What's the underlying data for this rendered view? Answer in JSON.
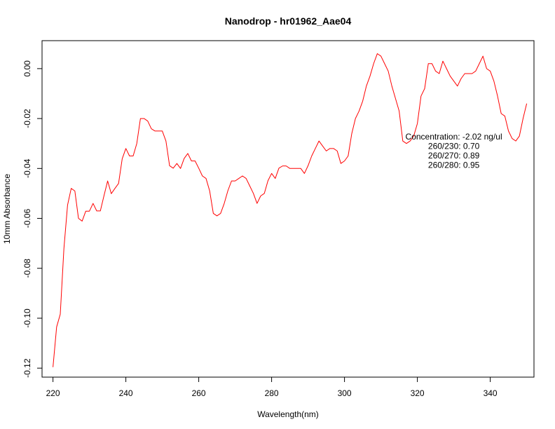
{
  "chart_data": {
    "type": "line",
    "title": "Nanodrop - hr01962_Aae04",
    "xlabel": "Wavelength(nm)",
    "ylabel": "10mm Absorbance",
    "xlim": [
      217,
      352
    ],
    "ylim": [
      -0.1236,
      0.0112
    ],
    "x_ticks": [
      220,
      240,
      260,
      280,
      300,
      320,
      340
    ],
    "y_ticks": [
      0.0,
      -0.02,
      -0.04,
      -0.06,
      -0.08,
      -0.1,
      -0.12
    ],
    "y_tick_labels": [
      "0.00",
      "-0.02",
      "-0.04",
      "-0.06",
      "-0.08",
      "-0.10",
      "-0.12"
    ],
    "grid": false,
    "legend": "none",
    "series": [
      {
        "color": "#ff0000",
        "x": [
          220,
          221,
          222,
          223,
          224,
          225,
          226,
          227,
          228,
          229,
          230,
          231,
          232,
          233,
          234,
          235,
          236,
          237,
          238,
          239,
          240,
          241,
          242,
          243,
          244,
          245,
          246,
          247,
          248,
          249,
          250,
          251,
          252,
          253,
          254,
          255,
          256,
          257,
          258,
          259,
          260,
          261,
          262,
          263,
          264,
          265,
          266,
          267,
          268,
          269,
          270,
          271,
          272,
          273,
          274,
          275,
          276,
          277,
          278,
          279,
          280,
          281,
          282,
          283,
          284,
          285,
          286,
          287,
          288,
          289,
          290,
          291,
          292,
          293,
          294,
          295,
          296,
          297,
          298,
          299,
          300,
          301,
          302,
          303,
          304,
          305,
          306,
          307,
          308,
          309,
          310,
          311,
          312,
          313,
          314,
          315,
          316,
          317,
          318,
          319,
          320,
          321,
          322,
          323,
          324,
          325,
          326,
          327,
          328,
          329,
          330,
          331,
          332,
          333,
          334,
          335,
          336,
          337,
          338,
          339,
          340,
          341,
          342,
          343,
          344,
          345,
          346,
          347,
          348,
          349,
          350
        ],
        "y": [
          -0.1196,
          -0.1035,
          -0.0984,
          -0.0721,
          -0.0547,
          -0.048,
          -0.049,
          -0.06,
          -0.0611,
          -0.0571,
          -0.0571,
          -0.054,
          -0.057,
          -0.057,
          -0.0509,
          -0.045,
          -0.0501,
          -0.048,
          -0.046,
          -0.0361,
          -0.032,
          -0.035,
          -0.035,
          -0.03,
          -0.02,
          -0.02,
          -0.021,
          -0.0241,
          -0.025,
          -0.025,
          -0.025,
          -0.029,
          -0.0389,
          -0.0399,
          -0.038,
          -0.04,
          -0.036,
          -0.034,
          -0.037,
          -0.037,
          -0.0399,
          -0.043,
          -0.044,
          -0.049,
          -0.058,
          -0.059,
          -0.058,
          -0.054,
          -0.0489,
          -0.045,
          -0.045,
          -0.044,
          -0.043,
          -0.044,
          -0.047,
          -0.05,
          -0.054,
          -0.051,
          -0.05,
          -0.0449,
          -0.042,
          -0.044,
          -0.0399,
          -0.039,
          -0.039,
          -0.04,
          -0.04,
          -0.04,
          -0.04,
          -0.042,
          -0.0389,
          -0.035,
          -0.032,
          -0.029,
          -0.031,
          -0.033,
          -0.032,
          -0.032,
          -0.033,
          -0.038,
          -0.037,
          -0.035,
          -0.026,
          -0.02,
          -0.017,
          -0.013,
          -0.007,
          -0.003,
          0.002,
          0.006,
          0.005,
          0.002,
          -0.001,
          -0.007,
          -0.012,
          -0.017,
          -0.029,
          -0.03,
          -0.029,
          -0.027,
          -0.022,
          -0.011,
          -0.008,
          0.002,
          0.002,
          -0.001,
          -0.002,
          0.003,
          0.0,
          -0.003,
          -0.005,
          -0.007,
          -0.004,
          -0.002,
          -0.002,
          -0.002,
          -0.001,
          0.002,
          0.005,
          0.0,
          -0.001,
          -0.005,
          -0.011,
          -0.018,
          -0.019,
          -0.025,
          -0.028,
          -0.029,
          -0.027,
          -0.02,
          -0.014
        ]
      }
    ],
    "annotations": [
      {
        "text": "Concentration: -2.02 ng/ul",
        "x": 330,
        "y": -0.0275
      },
      {
        "text": "260/230: 0.70",
        "x": 330,
        "y": -0.0313
      },
      {
        "text": "260/270: 0.89",
        "x": 330,
        "y": -0.0351
      },
      {
        "text": "260/280: 0.95",
        "x": 330,
        "y": -0.0389
      }
    ]
  }
}
